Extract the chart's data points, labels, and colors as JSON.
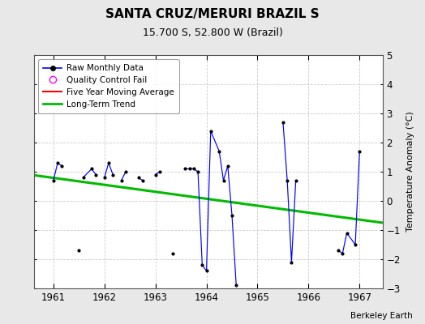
{
  "title": "SANTA CRUZ/MERURI BRAZIL S",
  "subtitle": "15.700 S, 52.800 W (Brazil)",
  "ylabel": "Temperature Anomaly (°C)",
  "credit": "Berkeley Earth",
  "xlim": [
    1960.62,
    1967.45
  ],
  "ylim": [
    -3,
    5
  ],
  "yticks": [
    -3,
    -2,
    -1,
    0,
    1,
    2,
    3,
    4,
    5
  ],
  "xticks": [
    1961,
    1962,
    1963,
    1964,
    1965,
    1966,
    1967
  ],
  "figure_bg": "#e8e8e8",
  "axes_bg": "#ffffff",
  "raw_x": [
    1961.0,
    1961.083,
    1961.167,
    1961.5,
    1961.583,
    1961.75,
    1961.833,
    1962.0,
    1962.083,
    1962.167,
    1962.333,
    1962.417,
    1962.667,
    1962.75,
    1963.0,
    1963.083,
    1963.333,
    1963.583,
    1963.667,
    1963.75,
    1963.833,
    1963.917,
    1964.0,
    1964.083,
    1964.25,
    1964.333,
    1964.417,
    1964.5,
    1964.583,
    1965.5,
    1965.583,
    1965.667,
    1965.75,
    1966.583,
    1966.667,
    1966.75,
    1966.917,
    1967.0
  ],
  "raw_y": [
    0.7,
    1.3,
    1.2,
    -1.7,
    0.8,
    1.1,
    0.9,
    0.8,
    1.3,
    0.9,
    0.7,
    1.0,
    0.8,
    0.7,
    0.9,
    1.0,
    -1.8,
    1.1,
    1.1,
    1.1,
    1.0,
    -2.2,
    -2.4,
    2.4,
    1.7,
    0.7,
    1.2,
    -0.5,
    -2.9,
    2.7,
    0.7,
    -2.1,
    0.7,
    -1.7,
    -1.8,
    -1.1,
    -1.5,
    1.7
  ],
  "connected_segments": [
    [
      0,
      1,
      2
    ],
    [
      4,
      5,
      6
    ],
    [
      7,
      8,
      9
    ],
    [
      10,
      11
    ],
    [
      12,
      13
    ],
    [
      14,
      15
    ],
    [
      17,
      18,
      19,
      20,
      21,
      22,
      23,
      24,
      25,
      26,
      27,
      28
    ],
    [
      29,
      30,
      31,
      32
    ],
    [
      33,
      34,
      35,
      36,
      37
    ]
  ],
  "trend_x": [
    1960.62,
    1967.45
  ],
  "trend_y": [
    0.88,
    -0.75
  ],
  "line_color": "#0000ff",
  "dot_color": "#000000",
  "trend_color": "#00bb00",
  "ma_color": "#ff0000",
  "grid_color": "#cccccc"
}
